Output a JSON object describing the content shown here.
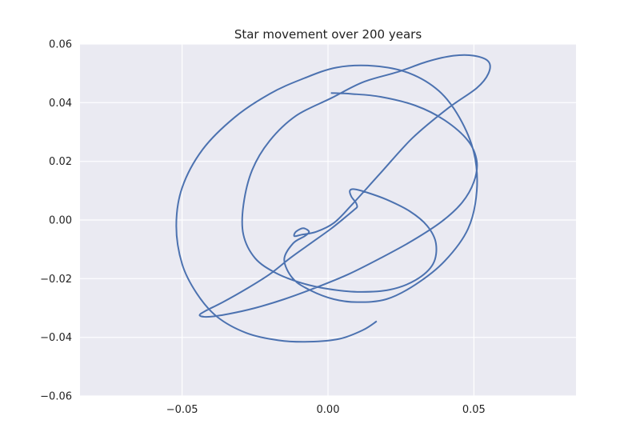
{
  "chart_data": {
    "type": "line",
    "title": "Star movement over 200 years",
    "xlabel": "",
    "ylabel": "",
    "xlim": [
      -0.085,
      0.085
    ],
    "ylim": [
      -0.06,
      0.06
    ],
    "grid": true,
    "xticks": [
      -0.05,
      0.0,
      0.05
    ],
    "xtick_labels": [
      "−0.05",
      "0.00",
      "0.05"
    ],
    "yticks": [
      0.06,
      0.04,
      0.02,
      0.0,
      -0.02,
      -0.04,
      -0.06
    ],
    "ytick_labels": [
      "0.06",
      "0.04",
      "0.02",
      "0.00",
      "−0.02",
      "−0.04",
      "−0.06"
    ],
    "series": [
      {
        "color": "#4C72B0",
        "x": [
          0.0167,
          0.012,
          0.004,
          -0.0065,
          -0.017,
          -0.028,
          -0.038,
          -0.045,
          -0.05,
          -0.052,
          -0.05,
          -0.043,
          -0.032,
          -0.02,
          -0.009,
          0.003,
          0.016,
          0.028,
          0.038,
          0.045,
          0.05,
          0.051,
          0.048,
          0.04,
          0.03,
          0.02,
          0.01,
          0.002,
          -0.006,
          -0.012,
          -0.015,
          -0.012,
          -0.008,
          -0.0065,
          -0.0085,
          -0.011,
          -0.0115,
          -0.009,
          -0.004,
          0.002,
          0.008,
          0.018,
          0.029,
          0.041,
          0.051,
          0.055,
          0.055,
          0.05,
          0.043,
          0.034,
          0.024,
          0.012,
          0.001,
          -0.011,
          -0.02,
          -0.026,
          -0.029,
          -0.029,
          -0.025,
          -0.018,
          -0.009,
          0.0,
          0.01,
          0.021,
          0.03,
          0.036,
          0.037,
          0.034,
          0.028,
          0.02,
          0.013,
          0.009,
          0.0075,
          0.008,
          0.0095,
          0.01,
          0.009,
          0.006,
          0.001,
          -0.006,
          -0.013,
          -0.02,
          -0.028,
          -0.036,
          -0.042,
          -0.044,
          -0.041,
          -0.034,
          -0.025,
          -0.015,
          -0.004,
          0.007,
          0.018,
          0.029,
          0.039,
          0.046,
          0.05,
          0.051,
          0.048,
          0.04,
          0.03,
          0.018,
          0.008,
          0.001
        ],
        "y": [
          -0.0345,
          -0.0375,
          -0.0405,
          -0.0415,
          -0.041,
          -0.0385,
          -0.033,
          -0.025,
          -0.015,
          -0.002,
          0.011,
          0.024,
          0.035,
          0.043,
          0.048,
          0.052,
          0.0525,
          0.05,
          0.044,
          0.035,
          0.023,
          0.01,
          -0.003,
          -0.014,
          -0.022,
          -0.027,
          -0.028,
          -0.027,
          -0.024,
          -0.02,
          -0.0135,
          -0.008,
          -0.0055,
          -0.004,
          -0.0028,
          -0.004,
          -0.0055,
          -0.005,
          -0.004,
          -0.001,
          0.005,
          0.016,
          0.028,
          0.038,
          0.045,
          0.05,
          0.054,
          0.056,
          0.056,
          0.054,
          0.0505,
          0.047,
          0.0415,
          0.0355,
          0.027,
          0.017,
          0.005,
          -0.005,
          -0.013,
          -0.018,
          -0.0215,
          -0.0235,
          -0.0245,
          -0.0238,
          -0.0205,
          -0.015,
          -0.008,
          -0.002,
          0.003,
          0.007,
          0.0095,
          0.0105,
          0.01,
          0.008,
          0.006,
          0.0045,
          0.0035,
          0.001,
          -0.003,
          -0.008,
          -0.013,
          -0.0185,
          -0.0235,
          -0.028,
          -0.031,
          -0.0325,
          -0.033,
          -0.032,
          -0.03,
          -0.027,
          -0.023,
          -0.0185,
          -0.013,
          -0.007,
          -0.0005,
          0.006,
          0.013,
          0.02,
          0.027,
          0.034,
          0.039,
          0.042,
          0.043,
          0.0433
        ]
      }
    ]
  }
}
